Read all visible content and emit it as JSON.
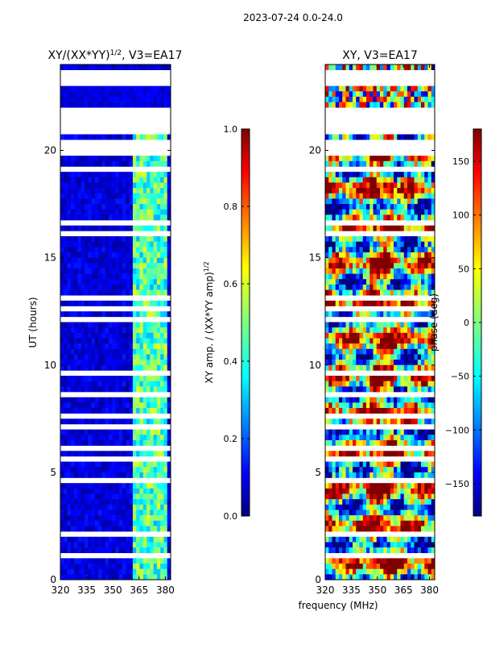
{
  "figure_title": "2023-07-24 0.0-24.0",
  "shared_xlabel": "frequency (MHz)",
  "chart_data": [
    {
      "type": "heatmap",
      "title_main": "XY/(XX*YY)",
      "title_sup": "1/2",
      "title_rest": ", V3=EA17",
      "ylabel": "UT (hours)",
      "xlim": [
        320,
        383
      ],
      "ylim": [
        0,
        24
      ],
      "xticks": [
        320,
        335,
        350,
        365,
        380
      ],
      "yticks": [
        0,
        5,
        10,
        15,
        20
      ],
      "flagged_bands_hours": [
        [
          0.05,
          0.1
        ],
        [
          0.3,
          0.35
        ],
        [
          1.1,
          1.15
        ],
        [
          1.4,
          1.6
        ],
        [
          1.7,
          1.8
        ],
        [
          2.0,
          2.3
        ],
        [
          2.7,
          2.75
        ],
        [
          3.4,
          3.45
        ],
        [
          4.05,
          4.1
        ],
        [
          4.6,
          4.65
        ],
        [
          5.6,
          5.7
        ],
        [
          6.1,
          6.2
        ],
        [
          6.5,
          6.55
        ],
        [
          7.1,
          7.15
        ],
        [
          7.6,
          7.7
        ],
        [
          8.0,
          8.05
        ],
        [
          8.6,
          8.65
        ],
        [
          9.3,
          9.35
        ],
        [
          9.6,
          9.7
        ],
        [
          10.3,
          10.35
        ],
        [
          10.9,
          10.95
        ],
        [
          11.4,
          11.5
        ],
        [
          12.1,
          12.15
        ],
        [
          12.6,
          12.7
        ],
        [
          13.1,
          13.15
        ],
        [
          13.8,
          13.85
        ],
        [
          14.3,
          14.35
        ],
        [
          14.9,
          15.0
        ],
        [
          15.45,
          15.55
        ],
        [
          16.1,
          16.15
        ],
        [
          16.6,
          16.65
        ],
        [
          17.0,
          17.1
        ],
        [
          17.3,
          17.35
        ],
        [
          18.0,
          18.05
        ],
        [
          18.4,
          18.5
        ],
        [
          19.1,
          19.15
        ],
        [
          19.8,
          20.4
        ],
        [
          20.8,
          21.9
        ],
        [
          22.0,
          22.1
        ],
        [
          22.4,
          22.5
        ],
        [
          23.0,
          23.7
        ]
      ],
      "bright_channels_mhz": [
        [
          362,
          364
        ],
        [
          366,
          368
        ],
        [
          370,
          372
        ],
        [
          374,
          376
        ],
        [
          378,
          380
        ]
      ]
    },
    {
      "type": "colorbar",
      "label": "XY amp. / (XX*YY amp)",
      "label_sup": "1/2",
      "range": [
        0.0,
        1.0
      ],
      "tick_labels": [
        "0.0",
        "0.2",
        "0.4",
        "0.6",
        "0.8",
        "1.0"
      ],
      "tick_values": [
        0.0,
        0.2,
        0.4,
        0.6,
        0.8,
        1.0
      ]
    },
    {
      "type": "heatmap",
      "title": "XY, V3=EA17",
      "xlim": [
        320,
        383
      ],
      "ylim": [
        0,
        24
      ],
      "xticks": [
        320,
        335,
        350,
        365,
        380
      ],
      "yticks": [
        0,
        5,
        10,
        15,
        20
      ],
      "flagged_bands_hours": [
        [
          0.05,
          0.1
        ],
        [
          0.3,
          0.35
        ],
        [
          1.1,
          1.15
        ],
        [
          1.4,
          1.6
        ],
        [
          1.7,
          1.8
        ],
        [
          2.0,
          2.3
        ],
        [
          2.7,
          2.75
        ],
        [
          3.4,
          3.45
        ],
        [
          4.05,
          4.1
        ],
        [
          4.6,
          4.65
        ],
        [
          5.6,
          5.7
        ],
        [
          6.1,
          6.2
        ],
        [
          6.5,
          6.55
        ],
        [
          7.1,
          7.15
        ],
        [
          7.6,
          7.7
        ],
        [
          8.0,
          8.05
        ],
        [
          8.6,
          8.65
        ],
        [
          9.3,
          9.35
        ],
        [
          9.6,
          9.7
        ],
        [
          10.3,
          10.35
        ],
        [
          10.9,
          10.95
        ],
        [
          11.4,
          11.5
        ],
        [
          12.1,
          12.15
        ],
        [
          12.6,
          12.7
        ],
        [
          13.1,
          13.15
        ],
        [
          13.8,
          13.85
        ],
        [
          14.3,
          14.35
        ],
        [
          14.9,
          15.0
        ],
        [
          15.45,
          15.55
        ],
        [
          16.1,
          16.15
        ],
        [
          16.6,
          16.65
        ],
        [
          17.0,
          17.1
        ],
        [
          17.3,
          17.35
        ],
        [
          18.0,
          18.05
        ],
        [
          18.4,
          18.5
        ],
        [
          19.1,
          19.15
        ],
        [
          19.8,
          20.4
        ],
        [
          20.8,
          21.9
        ],
        [
          22.0,
          22.1
        ],
        [
          22.4,
          22.5
        ],
        [
          23.0,
          23.7
        ]
      ]
    },
    {
      "type": "colorbar",
      "label": "phase (deg)",
      "range": [
        -180,
        180
      ],
      "tick_labels": [
        "−150",
        "−100",
        "−50",
        "0",
        "50",
        "100",
        "150"
      ],
      "tick_values": [
        -150,
        -100,
        -50,
        0,
        50,
        100,
        150
      ]
    }
  ],
  "colors": {
    "jet": [
      "#00007f",
      "#0000ff",
      "#007fff",
      "#00ffff",
      "#7fff7f",
      "#ffff00",
      "#ff7f00",
      "#ff0000",
      "#7f0000"
    ]
  }
}
